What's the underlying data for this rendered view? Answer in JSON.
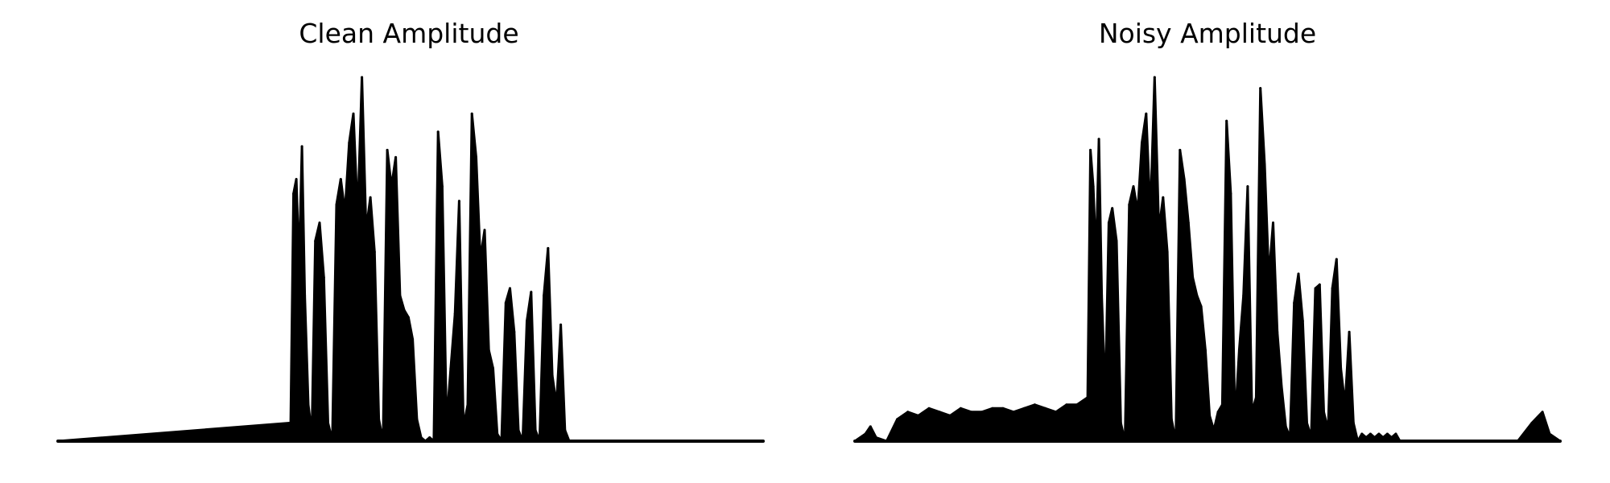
{
  "colors": {
    "waveform": "#000000",
    "background": "#ffffff"
  },
  "chart_data": [
    {
      "type": "area",
      "title": "Clean Amplitude",
      "xlabel": "",
      "ylabel": "",
      "axes_visible": false,
      "grid": false,
      "legend": "none",
      "xlim": [
        0,
        1
      ],
      "ylim": [
        0,
        1
      ],
      "x": [
        0.0,
        0.33,
        0.334,
        0.338,
        0.342,
        0.346,
        0.35,
        0.355,
        0.36,
        0.365,
        0.371,
        0.377,
        0.383,
        0.389,
        0.395,
        0.401,
        0.407,
        0.413,
        0.419,
        0.425,
        0.431,
        0.437,
        0.443,
        0.449,
        0.455,
        0.461,
        0.467,
        0.473,
        0.479,
        0.485,
        0.491,
        0.497,
        0.503,
        0.509,
        0.515,
        0.521,
        0.527,
        0.533,
        0.539,
        0.545,
        0.551,
        0.557,
        0.563,
        0.569,
        0.575,
        0.581,
        0.587,
        0.593,
        0.599,
        0.605,
        0.611,
        0.617,
        0.623,
        0.629,
        0.635,
        0.641,
        0.647,
        0.653,
        0.659,
        0.665,
        0.671,
        0.677,
        0.683,
        0.689,
        0.695,
        0.701,
        0.707,
        0.713,
        0.719,
        0.725,
        0.731,
        0.737,
        0.743,
        0.749,
        0.755,
        0.761,
        0.767,
        0.773,
        0.779,
        0.785,
        0.791,
        0.797,
        0.803,
        0.809,
        0.815,
        0.821,
        0.827,
        0.833,
        0.839,
        0.845,
        0.851,
        0.857,
        0.863,
        0.869,
        0.875,
        0.881,
        0.887,
        0.893,
        0.899,
        1.0
      ],
      "values": [
        0.0,
        0.05,
        0.68,
        0.72,
        0.48,
        0.81,
        0.4,
        0.1,
        0.02,
        0.55,
        0.6,
        0.45,
        0.05,
        0.0,
        0.65,
        0.72,
        0.63,
        0.82,
        0.9,
        0.62,
        1.0,
        0.58,
        0.67,
        0.52,
        0.06,
        0.0,
        0.8,
        0.7,
        0.78,
        0.4,
        0.36,
        0.34,
        0.28,
        0.06,
        0.01,
        0.0,
        0.01,
        0.0,
        0.85,
        0.7,
        0.05,
        0.2,
        0.35,
        0.66,
        0.04,
        0.1,
        0.9,
        0.78,
        0.5,
        0.58,
        0.25,
        0.2,
        0.02,
        0.0,
        0.38,
        0.42,
        0.3,
        0.03,
        0.0,
        0.33,
        0.41,
        0.03,
        0.0,
        0.4,
        0.53,
        0.18,
        0.1,
        0.32,
        0.03,
        0.0,
        0.0,
        0.0,
        0.0,
        0.0,
        0.0,
        0.0,
        0.0,
        0.0,
        0.0,
        0.0,
        0.0,
        0.0,
        0.0,
        0.0,
        0.0,
        0.0,
        0.0,
        0.0,
        0.0,
        0.0,
        0.0,
        0.0,
        0.0,
        0.0,
        0.0,
        0.0,
        0.0,
        0.0,
        0.0,
        0.0
      ]
    },
    {
      "type": "area",
      "title": "Noisy Amplitude",
      "xlabel": "",
      "ylabel": "",
      "axes_visible": false,
      "grid": false,
      "legend": "none",
      "xlim": [
        0,
        1
      ],
      "ylim": [
        0,
        1
      ],
      "x": [
        0.0,
        0.015,
        0.022,
        0.03,
        0.045,
        0.06,
        0.075,
        0.09,
        0.105,
        0.12,
        0.135,
        0.15,
        0.165,
        0.18,
        0.195,
        0.21,
        0.225,
        0.24,
        0.255,
        0.27,
        0.285,
        0.3,
        0.315,
        0.33,
        0.334,
        0.338,
        0.342,
        0.346,
        0.35,
        0.355,
        0.36,
        0.365,
        0.371,
        0.377,
        0.383,
        0.389,
        0.395,
        0.401,
        0.407,
        0.413,
        0.419,
        0.425,
        0.431,
        0.437,
        0.443,
        0.449,
        0.455,
        0.461,
        0.467,
        0.473,
        0.479,
        0.485,
        0.491,
        0.497,
        0.503,
        0.509,
        0.515,
        0.521,
        0.527,
        0.533,
        0.539,
        0.545,
        0.551,
        0.557,
        0.563,
        0.569,
        0.575,
        0.581,
        0.587,
        0.593,
        0.599,
        0.605,
        0.611,
        0.617,
        0.623,
        0.629,
        0.635,
        0.641,
        0.647,
        0.653,
        0.659,
        0.665,
        0.671,
        0.677,
        0.683,
        0.689,
        0.695,
        0.701,
        0.707,
        0.713,
        0.719,
        0.725,
        0.731,
        0.737,
        0.743,
        0.749,
        0.755,
        0.761,
        0.767,
        0.773,
        0.779,
        0.785,
        0.791,
        0.797,
        0.803,
        0.809,
        0.815,
        0.821,
        0.827,
        0.833,
        0.839,
        0.845,
        0.851,
        0.857,
        0.863,
        0.869,
        0.875,
        0.881,
        0.887,
        0.893,
        0.899,
        0.94,
        0.96,
        0.975,
        0.985,
        1.0
      ],
      "values": [
        0.0,
        0.02,
        0.04,
        0.01,
        0.0,
        0.06,
        0.08,
        0.07,
        0.09,
        0.08,
        0.07,
        0.09,
        0.08,
        0.08,
        0.09,
        0.09,
        0.08,
        0.09,
        0.1,
        0.09,
        0.08,
        0.1,
        0.1,
        0.12,
        0.8,
        0.7,
        0.5,
        0.83,
        0.4,
        0.12,
        0.6,
        0.64,
        0.55,
        0.05,
        0.0,
        0.65,
        0.7,
        0.63,
        0.82,
        0.9,
        0.62,
        1.0,
        0.58,
        0.67,
        0.52,
        0.06,
        0.0,
        0.8,
        0.72,
        0.6,
        0.45,
        0.4,
        0.37,
        0.25,
        0.07,
        0.03,
        0.08,
        0.1,
        0.88,
        0.68,
        0.05,
        0.25,
        0.4,
        0.7,
        0.08,
        0.12,
        0.97,
        0.76,
        0.45,
        0.6,
        0.3,
        0.15,
        0.04,
        0.01,
        0.38,
        0.46,
        0.33,
        0.05,
        0.01,
        0.42,
        0.43,
        0.08,
        0.03,
        0.42,
        0.5,
        0.2,
        0.1,
        0.3,
        0.05,
        0.0,
        0.02,
        0.01,
        0.02,
        0.01,
        0.02,
        0.01,
        0.02,
        0.01,
        0.02,
        0.0,
        0.0,
        0.0,
        0.0,
        0.0,
        0.0,
        0.0,
        0.0,
        0.0,
        0.0,
        0.0,
        0.0,
        0.0,
        0.0,
        0.0,
        0.0,
        0.0,
        0.0,
        0.0,
        0.0,
        0.0,
        0.0,
        0.0,
        0.05,
        0.08,
        0.02,
        0.0
      ]
    }
  ]
}
